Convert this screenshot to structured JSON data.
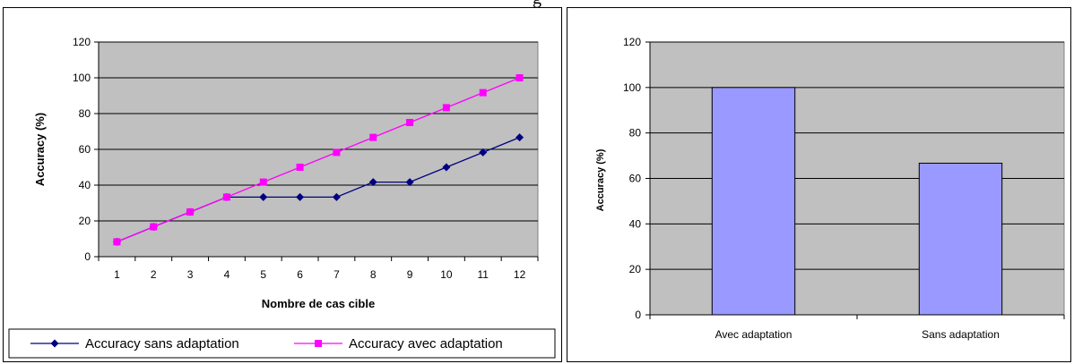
{
  "page_title_fragment": "g",
  "chart_data": [
    {
      "type": "line",
      "title": "",
      "xlabel": "Nombre de cas cible",
      "ylabel": "Accuracy (%)",
      "categories": [
        "1",
        "2",
        "3",
        "4",
        "5",
        "6",
        "7",
        "8",
        "9",
        "10",
        "11",
        "12"
      ],
      "ylim": [
        0,
        120
      ],
      "yticks": [
        "0",
        "20",
        "40",
        "60",
        "80",
        "100",
        "120"
      ],
      "grid": true,
      "legend": "bottom",
      "background": "#c0c0c0",
      "series": [
        {
          "name": "Accuracy sans adaptation",
          "color": "#000080",
          "marker": "diamond",
          "values": [
            8.3,
            16.7,
            25,
            33.3,
            33.3,
            33.3,
            33.3,
            41.7,
            41.7,
            50,
            58.3,
            66.7
          ]
        },
        {
          "name": "Accuracy avec adaptation",
          "color": "#ff00ff",
          "marker": "square",
          "values": [
            8.3,
            16.7,
            25,
            33.3,
            41.7,
            50,
            58.3,
            66.7,
            75,
            83.3,
            91.7,
            100
          ]
        }
      ]
    },
    {
      "type": "bar",
      "title": "",
      "xlabel": "",
      "ylabel": "Accuracy (%)",
      "categories": [
        "Avec adaptation",
        "Sans adaptation"
      ],
      "values": [
        100,
        66.7
      ],
      "ylim": [
        0,
        120
      ],
      "yticks": [
        "0",
        "20",
        "40",
        "60",
        "80",
        "100",
        "120"
      ],
      "grid": true,
      "bar_color": "#9999ff",
      "background": "#c0c0c0"
    }
  ]
}
